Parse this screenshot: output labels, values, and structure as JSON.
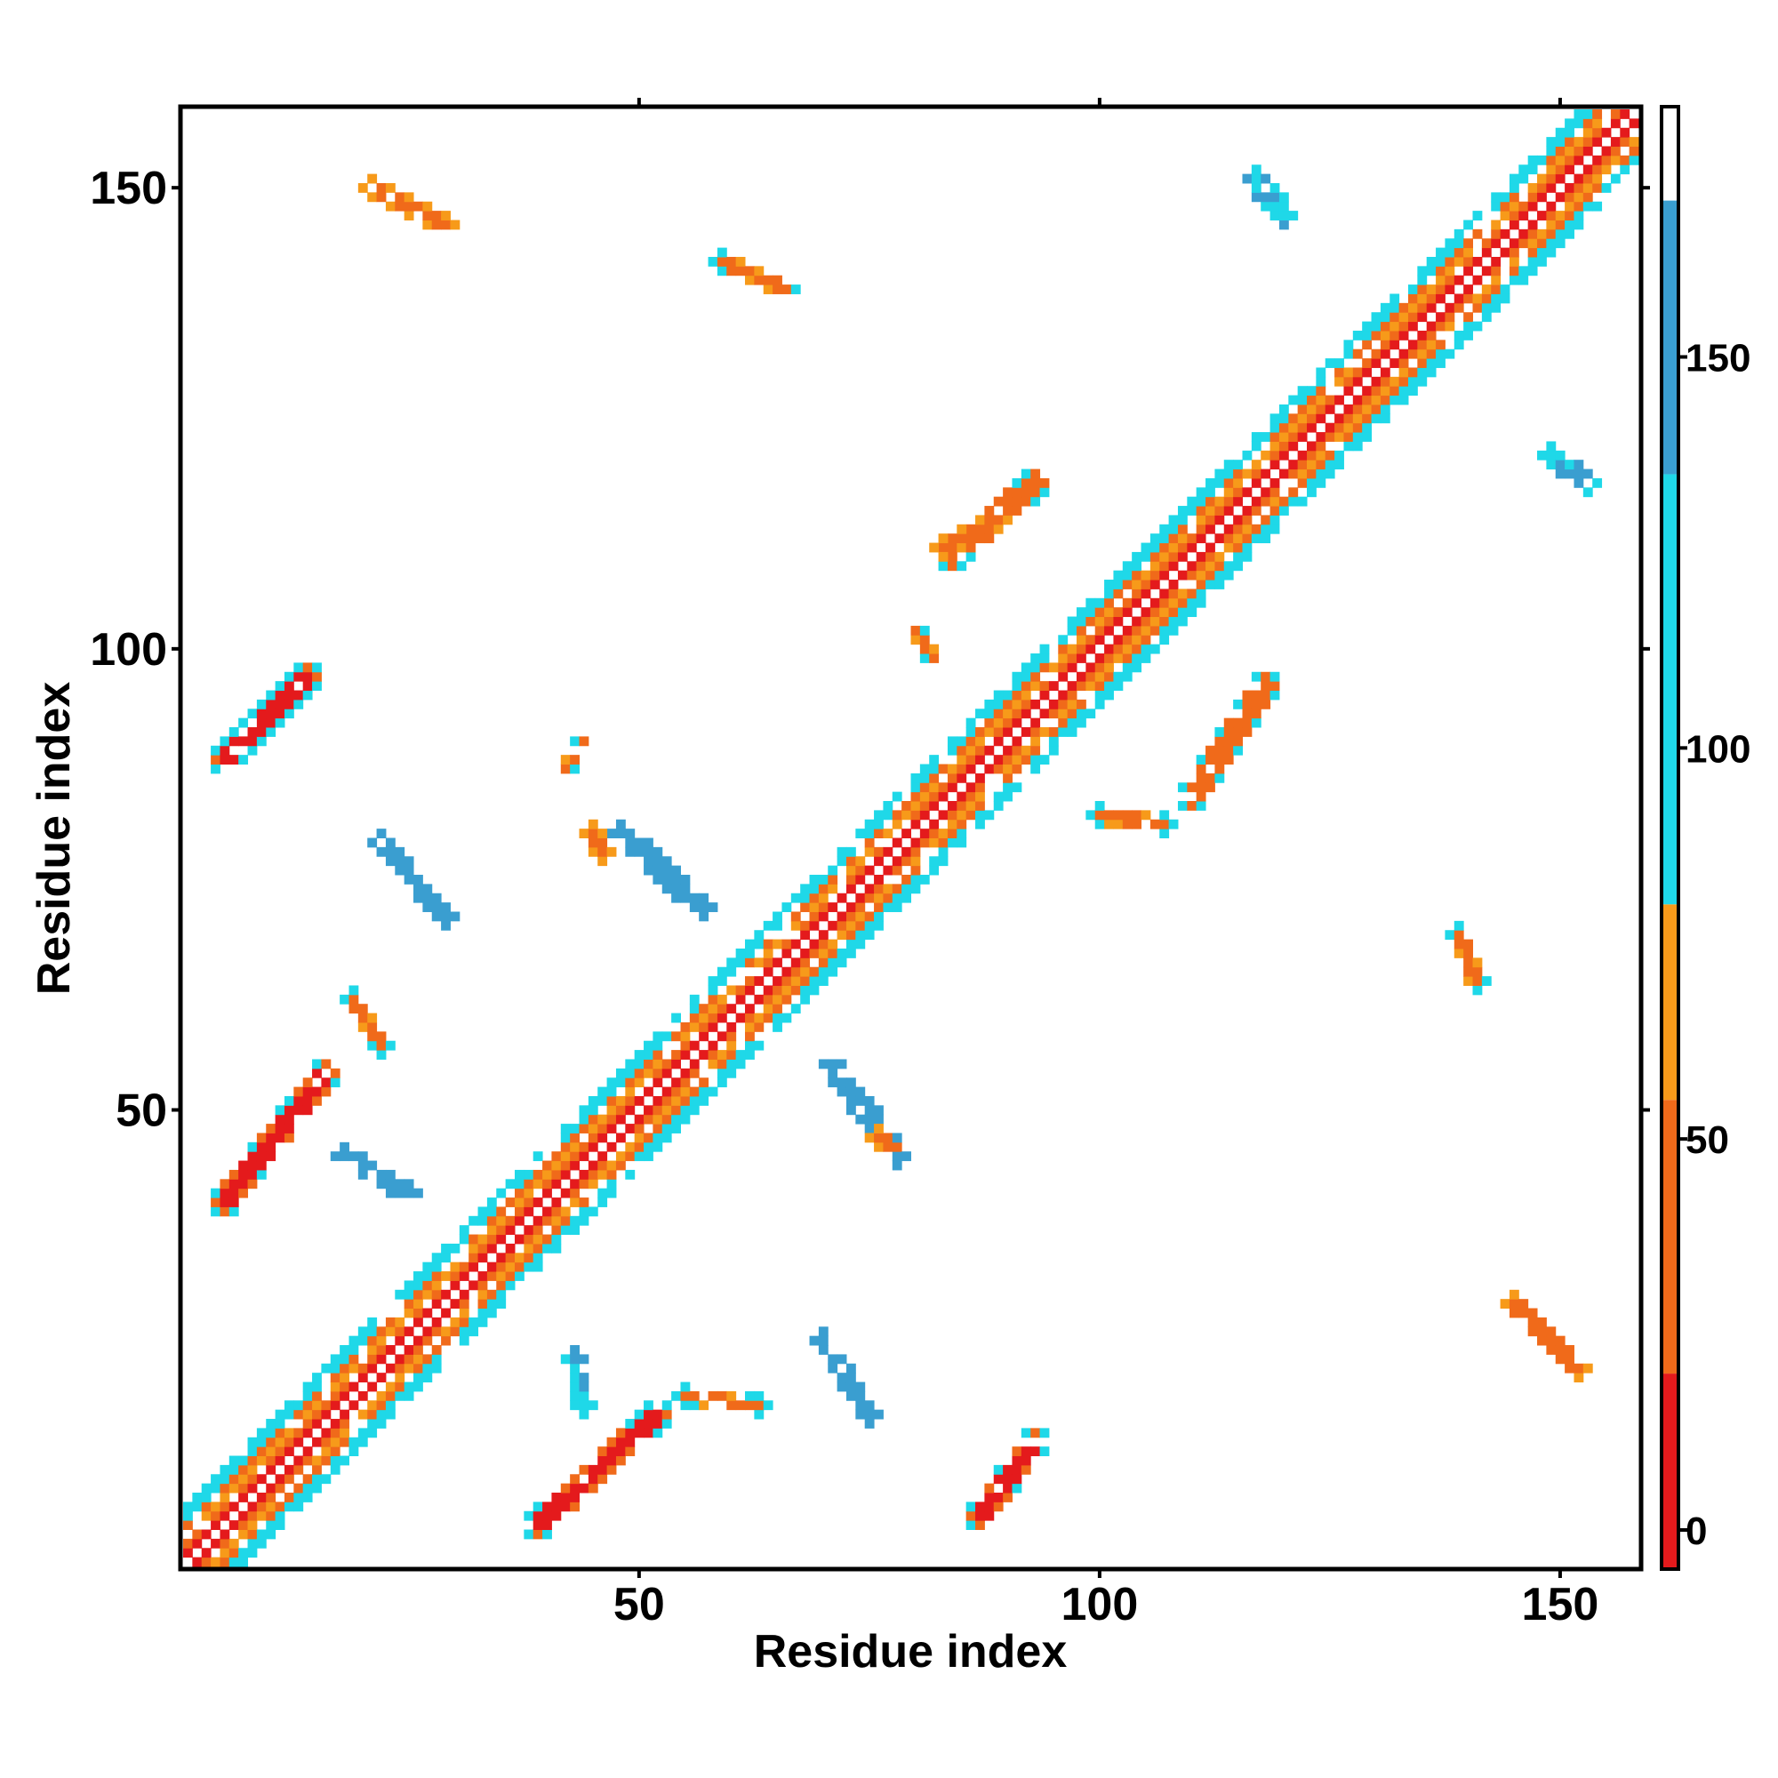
{
  "chart_data": {
    "type": "heatmap",
    "title": "",
    "xlabel": "Residue index",
    "ylabel": "Residue index",
    "x_range": [
      1,
      158
    ],
    "y_range": [
      1,
      158
    ],
    "x_ticks": [
      50,
      100,
      150
    ],
    "y_ticks": [
      50,
      100,
      150
    ],
    "colorbar": {
      "range": [
        -5,
        182
      ],
      "ticks": [
        0,
        50,
        100,
        150
      ],
      "bands": [
        {
          "from": -5,
          "to": 20,
          "color": "#e41a1c"
        },
        {
          "from": 20,
          "to": 55,
          "color": "#f06a1a"
        },
        {
          "from": 55,
          "to": 80,
          "color": "#f79a1a"
        },
        {
          "from": 80,
          "to": 135,
          "color": "#1fd8e8"
        },
        {
          "from": 135,
          "to": 170,
          "color": "#3a9ed0"
        },
        {
          "from": 170,
          "to": 182,
          "color": "#ffffff"
        }
      ]
    },
    "diagonal_band": {
      "halfwidth": 6,
      "from": 1,
      "to": 158
    },
    "contact_patches": [
      {
        "start": [
          14,
          97
        ],
        "end": [
          5,
          88
        ],
        "halfwidth": 1.5,
        "value": 10
      },
      {
        "start": [
          16,
          54
        ],
        "end": [
          5,
          40
        ],
        "halfwidth": 1.5,
        "value": 10
      },
      {
        "start": [
          52,
          17
        ],
        "end": [
          39,
          5
        ],
        "halfwidth": 1.5,
        "value": 15
      },
      {
        "start": [
          93,
          14
        ],
        "end": [
          87,
          6
        ],
        "halfwidth": 1.6,
        "value": 10
      },
      {
        "start": [
          118,
          96
        ],
        "end": [
          110,
          84
        ],
        "halfwidth": 1.5,
        "value": 20
      },
      {
        "start": [
          93,
          118
        ],
        "end": [
          84,
          110
        ],
        "halfwidth": 1.5,
        "value": 20
      },
      {
        "start": [
          48,
          80
        ],
        "end": [
          57,
          72
        ],
        "halfwidth": 1.3,
        "value": 145
      },
      {
        "start": [
          71,
          55
        ],
        "end": [
          78,
          45
        ],
        "halfwidth": 1.3,
        "value": 145
      },
      {
        "start": [
          45,
          80
        ],
        "end": [
          46,
          78
        ],
        "halfwidth": 1.2,
        "value": 30
      },
      {
        "start": [
          76,
          47
        ],
        "end": [
          78,
          46
        ],
        "halfwidth": 1.2,
        "value": 30
      },
      {
        "start": [
          19,
          62
        ],
        "end": [
          22,
          57
        ],
        "halfwidth": 1.0,
        "value": 30
      },
      {
        "start": [
          55,
          19
        ],
        "end": [
          63,
          18
        ],
        "halfwidth": 1.0,
        "value": 30
      },
      {
        "start": [
          18,
          45
        ],
        "end": [
          25,
          41
        ],
        "halfwidth": 1.0,
        "value": 140
      },
      {
        "start": [
          22,
          79
        ],
        "end": [
          29,
          71
        ],
        "halfwidth": 1.0,
        "value": 140
      },
      {
        "start": [
          43,
          23
        ],
        "end": [
          44,
          18
        ],
        "halfwidth": 1.0,
        "value": 100
      },
      {
        "start": [
          70,
          25
        ],
        "end": [
          75,
          17
        ],
        "halfwidth": 1.0,
        "value": 140
      },
      {
        "start": [
          21,
          150
        ],
        "end": [
          29,
          146
        ],
        "halfwidth": 1.2,
        "value": 40
      },
      {
        "start": [
          59,
          142
        ],
        "end": [
          66,
          139
        ],
        "halfwidth": 1.0,
        "value": 40
      },
      {
        "start": [
          117,
          151
        ],
        "end": [
          120,
          147
        ],
        "halfwidth": 1.2,
        "value": 90
      },
      {
        "start": [
          139,
          69
        ],
        "end": [
          141,
          64
        ],
        "halfwidth": 1.1,
        "value": 40
      },
      {
        "start": [
          145,
          29
        ],
        "end": [
          152,
          22
        ],
        "halfwidth": 1.3,
        "value": 40
      },
      {
        "start": [
          149,
          121
        ],
        "end": [
          153,
          118
        ],
        "halfwidth": 1.0,
        "value": 100
      },
      {
        "start": [
          83,
          111
        ],
        "end": [
          89,
          114
        ],
        "halfwidth": 1.2,
        "value": 30
      },
      {
        "start": [
          80,
          102
        ],
        "end": [
          82,
          99
        ],
        "halfwidth": 0.9,
        "value": 40
      },
      {
        "start": [
          100,
          82
        ],
        "end": [
          107,
          81
        ],
        "halfwidth": 1.0,
        "value": 40
      },
      {
        "start": [
          42,
          87
        ],
        "end": [
          44,
          90
        ],
        "halfwidth": 0.9,
        "value": 40
      }
    ]
  }
}
